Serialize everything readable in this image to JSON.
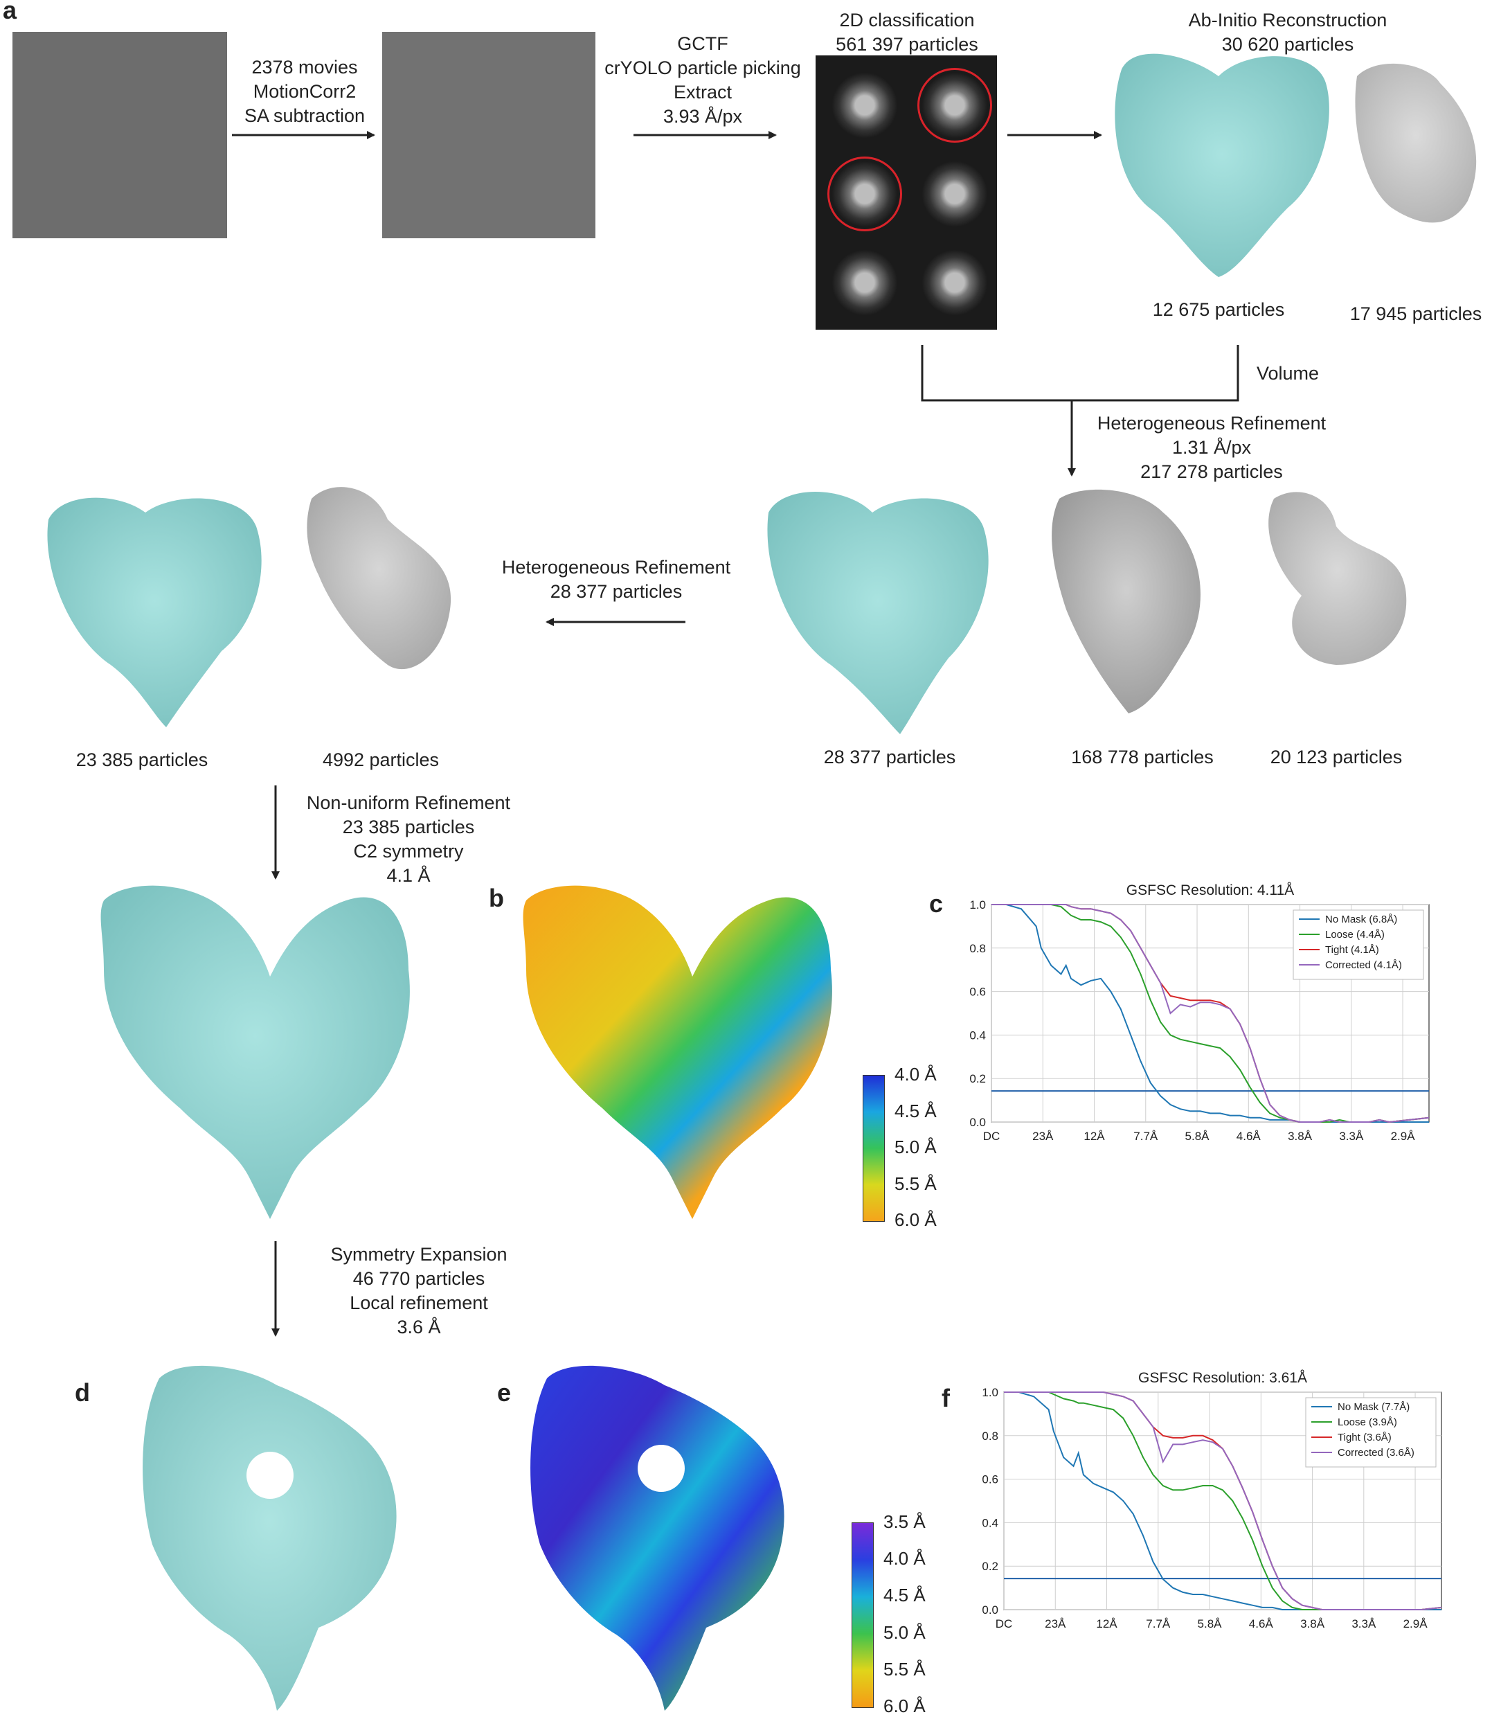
{
  "panels": {
    "a": "a",
    "b": "b",
    "c": "c",
    "d": "d",
    "e": "e",
    "f": "f"
  },
  "workflow": {
    "step1": [
      "2378 movies",
      "MotionCorr2",
      "SA subtraction"
    ],
    "step2": [
      "GCTF",
      "crYOLO particle picking",
      "Extract",
      "3.93 Å/px"
    ],
    "class2d": [
      "2D classification",
      "561 397 particles"
    ],
    "abinitio": [
      "Ab-Initio Reconstruction",
      "30 620 particles"
    ],
    "abinitio_counts": [
      "12 675 particles",
      "17 945 particles"
    ],
    "volume": "Volume",
    "hetero1": [
      "Heterogeneous Refinement",
      "1.31 Å/px",
      "217 278 particles"
    ],
    "hetero1_counts": [
      "28 377 particles",
      "168 778 particles",
      "20 123 particles"
    ],
    "hetero2": [
      "Heterogeneous Refinement",
      "28 377 particles"
    ],
    "hetero2_counts": [
      "23 385 particles",
      "4992 particles"
    ],
    "nonuniform": [
      "Non-uniform Refinement",
      "23 385 particles",
      "C2 symmetry",
      "4.1 Å"
    ],
    "symexp": [
      "Symmetry Expansion",
      "46 770 particles",
      "Local refinement",
      "3.6 Å"
    ]
  },
  "colorbar_b": {
    "labels": [
      "4.0 Å",
      "4.5 Å",
      "5.0 Å",
      "5.5 Å",
      "6.0 Å"
    ],
    "colors": [
      "#1f2fd6",
      "#1aa6e0",
      "#36c35a",
      "#d8d81e",
      "#f5a41b"
    ]
  },
  "colorbar_e": {
    "labels": [
      "3.5 Å",
      "4.0 Å",
      "4.5 Å",
      "5.0 Å",
      "5.5 Å",
      "6.0 Å"
    ],
    "colors": [
      "#7a2bd9",
      "#2a3fe0",
      "#1ab0da",
      "#3cc24e",
      "#e0d51a",
      "#f59a16"
    ]
  },
  "chart_data": [
    {
      "type": "line",
      "title": "GSFSC Resolution: 4.11Å",
      "xlabel": "",
      "ylabel": "",
      "x_ticks": [
        "DC",
        "23Å",
        "12Å",
        "7.7Å",
        "5.8Å",
        "4.6Å",
        "3.8Å",
        "3.3Å",
        "2.9Å"
      ],
      "y_ticks": [
        "0.0",
        "0.2",
        "0.4",
        "0.6",
        "0.8",
        "1.0"
      ],
      "ylim": [
        0,
        1
      ],
      "threshold": 0.143,
      "grid": true,
      "legend_position": "top-right",
      "x": [
        0,
        0.3,
        0.6,
        0.9,
        1.0,
        1.2,
        1.4,
        1.5,
        1.6,
        1.8,
        2.0,
        2.2,
        2.4,
        2.6,
        2.8,
        3.0,
        3.2,
        3.4,
        3.6,
        3.8,
        4.0,
        4.2,
        4.4,
        4.6,
        4.8,
        5.0,
        5.2,
        5.4,
        5.6,
        5.8,
        6.0,
        6.2,
        6.4,
        6.6,
        6.8,
        7.0,
        7.2,
        7.4,
        7.6,
        7.8,
        8.0,
        8.4,
        8.8
      ],
      "series": [
        {
          "name": "No Mask (6.8Å)",
          "color": "#1f77b4",
          "values": [
            1,
            1,
            0.98,
            0.9,
            0.8,
            0.72,
            0.68,
            0.72,
            0.66,
            0.63,
            0.65,
            0.66,
            0.6,
            0.52,
            0.4,
            0.28,
            0.18,
            0.12,
            0.08,
            0.06,
            0.05,
            0.05,
            0.04,
            0.04,
            0.03,
            0.03,
            0.02,
            0.02,
            0.01,
            0.01,
            0.01,
            0.0,
            0.0,
            0.0,
            0.0,
            0.0,
            0.0,
            0.0,
            0.0,
            0.0,
            0.0,
            0.0,
            0.0
          ]
        },
        {
          "name": "Loose (4.4Å)",
          "color": "#2ca02c",
          "values": [
            1,
            1,
            1,
            1,
            1,
            1,
            0.99,
            0.97,
            0.95,
            0.93,
            0.93,
            0.92,
            0.9,
            0.85,
            0.78,
            0.68,
            0.56,
            0.46,
            0.4,
            0.38,
            0.37,
            0.36,
            0.35,
            0.34,
            0.3,
            0.24,
            0.16,
            0.09,
            0.04,
            0.02,
            0.01,
            0.0,
            0.0,
            0.0,
            0.0,
            0.01,
            0.0,
            0.0,
            0.0,
            0.01,
            0.0,
            0.01,
            0.02
          ]
        },
        {
          "name": "Tight (4.1Å)",
          "color": "#d62728",
          "values": [
            1,
            1,
            1,
            1,
            1,
            1,
            1,
            1,
            0.99,
            0.98,
            0.98,
            0.97,
            0.96,
            0.93,
            0.88,
            0.8,
            0.72,
            0.64,
            0.58,
            0.57,
            0.56,
            0.56,
            0.56,
            0.55,
            0.52,
            0.45,
            0.34,
            0.2,
            0.08,
            0.03,
            0.01,
            0.0,
            0.0,
            0.0,
            0.01,
            0.0,
            0.0,
            0.0,
            0.0,
            0.01,
            0.0,
            0.01,
            0.02
          ]
        },
        {
          "name": "Corrected (4.1Å)",
          "color": "#9467bd",
          "values": [
            1,
            1,
            1,
            1,
            1,
            1,
            1,
            1,
            0.99,
            0.98,
            0.98,
            0.97,
            0.96,
            0.93,
            0.88,
            0.8,
            0.72,
            0.64,
            0.5,
            0.54,
            0.53,
            0.55,
            0.55,
            0.54,
            0.52,
            0.45,
            0.34,
            0.2,
            0.08,
            0.03,
            0.01,
            0.0,
            0.0,
            0.0,
            0.01,
            0.0,
            0.0,
            0.0,
            0.0,
            0.01,
            0.0,
            0.01,
            0.02
          ]
        }
      ]
    },
    {
      "type": "line",
      "title": "GSFSC Resolution: 3.61Å",
      "xlabel": "",
      "ylabel": "",
      "x_ticks": [
        "DC",
        "23Å",
        "12Å",
        "7.7Å",
        "5.8Å",
        "4.6Å",
        "3.8Å",
        "3.3Å",
        "2.9Å"
      ],
      "y_ticks": [
        "0.0",
        "0.2",
        "0.4",
        "0.6",
        "0.8",
        "1.0"
      ],
      "ylim": [
        0,
        1
      ],
      "threshold": 0.143,
      "grid": true,
      "legend_position": "top-right",
      "x": [
        0,
        0.3,
        0.6,
        0.9,
        1.0,
        1.2,
        1.4,
        1.5,
        1.6,
        1.8,
        2.0,
        2.2,
        2.4,
        2.6,
        2.8,
        3.0,
        3.2,
        3.4,
        3.6,
        3.8,
        4.0,
        4.2,
        4.4,
        4.6,
        4.8,
        5.0,
        5.2,
        5.4,
        5.6,
        5.8,
        6.0,
        6.2,
        6.4,
        6.6,
        6.8,
        7.0,
        7.2,
        7.4,
        7.6,
        7.8,
        8.0,
        8.4,
        8.8
      ],
      "series": [
        {
          "name": "No Mask (7.7Å)",
          "color": "#1f77b4",
          "values": [
            1,
            1,
            0.98,
            0.92,
            0.82,
            0.7,
            0.66,
            0.72,
            0.62,
            0.58,
            0.56,
            0.54,
            0.5,
            0.44,
            0.34,
            0.22,
            0.14,
            0.1,
            0.08,
            0.07,
            0.07,
            0.06,
            0.05,
            0.04,
            0.03,
            0.02,
            0.01,
            0.01,
            0.0,
            0.0,
            0.0,
            0.0,
            0.0,
            0.0,
            0.0,
            0.0,
            0.0,
            0.0,
            0.0,
            0.0,
            0.0,
            0.0,
            0.0
          ]
        },
        {
          "name": "Loose (3.9Å)",
          "color": "#2ca02c",
          "values": [
            1,
            1,
            1,
            1,
            0.99,
            0.97,
            0.96,
            0.95,
            0.95,
            0.94,
            0.93,
            0.92,
            0.88,
            0.8,
            0.7,
            0.62,
            0.57,
            0.55,
            0.55,
            0.56,
            0.57,
            0.57,
            0.55,
            0.5,
            0.42,
            0.32,
            0.2,
            0.1,
            0.04,
            0.01,
            0.0,
            0.0,
            0.0,
            0.0,
            0.0,
            0.0,
            0.0,
            0.0,
            0.0,
            0.0,
            0.0,
            0.0,
            0.01
          ]
        },
        {
          "name": "Tight (3.6Å)",
          "color": "#d62728",
          "values": [
            1,
            1,
            1,
            1,
            1,
            1,
            1,
            1,
            1,
            1,
            1,
            0.99,
            0.98,
            0.96,
            0.9,
            0.84,
            0.8,
            0.79,
            0.79,
            0.8,
            0.8,
            0.78,
            0.74,
            0.66,
            0.56,
            0.45,
            0.32,
            0.2,
            0.1,
            0.05,
            0.02,
            0.01,
            0.0,
            0.0,
            0.0,
            0.0,
            0.0,
            0.0,
            0.0,
            0.0,
            0.0,
            0.0,
            0.01
          ]
        },
        {
          "name": "Corrected (3.6Å)",
          "color": "#9467bd",
          "values": [
            1,
            1,
            1,
            1,
            1,
            1,
            1,
            1,
            1,
            1,
            1,
            0.99,
            0.98,
            0.96,
            0.9,
            0.84,
            0.68,
            0.76,
            0.76,
            0.77,
            0.78,
            0.77,
            0.74,
            0.66,
            0.56,
            0.45,
            0.32,
            0.2,
            0.1,
            0.05,
            0.02,
            0.01,
            0.0,
            0.0,
            0.0,
            0.0,
            0.0,
            0.0,
            0.0,
            0.0,
            0.0,
            0.0,
            0.01
          ]
        }
      ]
    }
  ]
}
